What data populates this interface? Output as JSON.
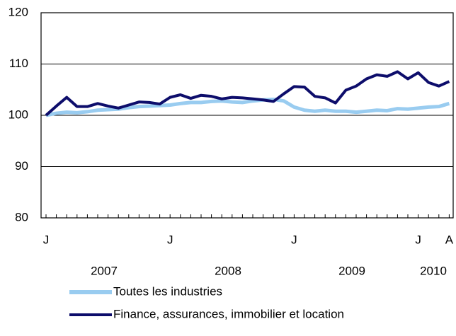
{
  "chart_data": {
    "type": "line",
    "categories": [
      "J",
      null,
      null,
      null,
      null,
      null,
      null,
      null,
      null,
      null,
      null,
      null,
      "J",
      null,
      null,
      null,
      null,
      null,
      null,
      null,
      null,
      null,
      null,
      null,
      "J",
      null,
      null,
      null,
      null,
      null,
      null,
      null,
      null,
      null,
      null,
      null,
      "J",
      null,
      null,
      "A"
    ],
    "years": [
      "2007",
      "2008",
      "2009",
      "2010"
    ],
    "series": [
      {
        "name": "Toutes les industries",
        "color": "#99ccf0",
        "values": [
          100,
          100.4,
          100.6,
          100.5,
          100.7,
          101,
          101.1,
          101.2,
          101.5,
          101.7,
          101.8,
          101.9,
          102,
          102.3,
          102.5,
          102.5,
          102.7,
          102.8,
          102.6,
          102.5,
          102.8,
          103,
          103.1,
          102.8,
          101.6,
          101,
          100.8,
          101,
          100.8,
          100.8,
          100.6,
          100.8,
          101,
          100.9,
          101.3,
          101.2,
          101.4,
          101.6,
          101.7,
          102.3
        ]
      },
      {
        "name": "Finance, assurances, immobilier et location",
        "color": "#0d0d6b",
        "values": [
          100,
          101.8,
          103.5,
          101.7,
          101.7,
          102.3,
          101.8,
          101.4,
          102,
          102.6,
          102.5,
          102.2,
          103.5,
          104,
          103.3,
          103.9,
          103.7,
          103.2,
          103.5,
          103.4,
          103.2,
          103,
          102.7,
          104.2,
          105.6,
          105.5,
          103.7,
          103.4,
          102.4,
          104.9,
          105.7,
          107.1,
          107.9,
          107.6,
          108.5,
          107.1,
          108.3,
          106.4,
          105.7,
          106.6
        ]
      }
    ],
    "ylim": [
      80,
      120
    ],
    "yticks": [
      80,
      90,
      100,
      110,
      120
    ],
    "grid": true
  }
}
